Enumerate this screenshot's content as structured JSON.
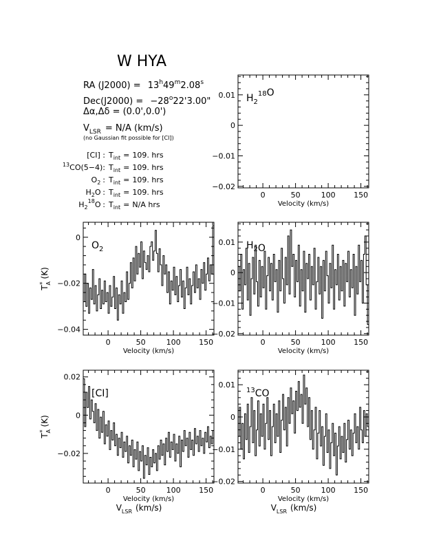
{
  "header": {
    "title": "W HYA",
    "ra_label": "RA (J2000) =",
    "ra_h": "13",
    "ra_h_unit": "h",
    "ra_m": "49",
    "ra_m_unit": "m",
    "ra_s": "2.08",
    "ra_s_unit": "s",
    "dec_label": "Dec(J2000) =",
    "dec_deg": "−28",
    "dec_deg_unit": "o",
    "dec_rest": "22'3.00\"",
    "offset": "Δα,Δδ = (0.0',0.0')",
    "vlsr_main": "V",
    "vlsr_sub": "LSR",
    "vlsr_rest": "= N/A (km/s)",
    "note": "(no Gaussian fit possible for [CI])"
  },
  "integration_table": [
    {
      "pre": "",
      "sup": "",
      "name": "[CI]",
      "sub": "",
      "post": "",
      "value": "109. hrs"
    },
    {
      "pre": "",
      "sup": "13",
      "name": "CO(5−4)",
      "sub": "",
      "post": "",
      "value": "109. hrs"
    },
    {
      "pre": "",
      "sup": "",
      "name": "O",
      "sub": "2",
      "post": "",
      "value": "109. hrs"
    },
    {
      "pre": "",
      "sup": "",
      "name": "H",
      "sub": "2",
      "post": "O",
      "value": "109. hrs"
    },
    {
      "pre": "",
      "sup": "",
      "name": "H",
      "sub": "2",
      "post": "O",
      "sup2": "18",
      "value": "N/A hrs"
    }
  ],
  "tint_label": "T",
  "tint_sub": "int",
  "tint_eq": "=",
  "colon": ":",
  "chart_data": [
    {
      "id": "h218o",
      "type": "line",
      "label": {
        "main": "H",
        "sub": "2",
        "sup": "18",
        "post": "O"
      },
      "xlabel": "Velocity (km/s)",
      "ylabel": "",
      "xlim": [
        -38,
        162
      ],
      "ylim": [
        -0.0205,
        0.0165
      ],
      "xticks": [
        0,
        50,
        100,
        150
      ],
      "xtick_labels": [
        "0",
        "50",
        "100",
        "150"
      ],
      "yticks": [
        0.01,
        0,
        -0.01,
        -0.02
      ],
      "ytick_labels": [
        "0.01",
        "0",
        "−0.01",
        "−0.02"
      ],
      "x": [],
      "y": []
    },
    {
      "id": "o2",
      "type": "line",
      "label": {
        "main": "O",
        "sub": "2"
      },
      "xlabel": "Velocity (km/s)",
      "ylabel": "T*A (K)",
      "xlim": [
        -38,
        162
      ],
      "ylim": [
        -0.0425,
        0.0065
      ],
      "xticks": [
        0,
        50,
        100,
        150
      ],
      "xtick_labels": [
        "0",
        "50",
        "100",
        "150"
      ],
      "yticks": [
        0,
        -0.02,
        -0.04
      ],
      "ytick_labels": [
        "0",
        "−0.02",
        "−0.04"
      ],
      "x": [
        -37,
        -35,
        -33,
        -31,
        -29,
        -27,
        -25,
        -23,
        -21,
        -19,
        -17,
        -15,
        -13,
        -11,
        -9,
        -7,
        -5,
        -3,
        -1,
        1,
        3,
        5,
        7,
        9,
        11,
        13,
        15,
        17,
        19,
        21,
        23,
        25,
        27,
        29,
        31,
        33,
        35,
        37,
        39,
        41,
        43,
        45,
        47,
        49,
        51,
        53,
        55,
        57,
        59,
        61,
        63,
        65,
        67,
        69,
        71,
        73,
        75,
        77,
        79,
        81,
        83,
        85,
        87,
        89,
        91,
        93,
        95,
        97,
        99,
        101,
        103,
        105,
        107,
        109,
        111,
        113,
        115,
        117,
        119,
        121,
        123,
        125,
        127,
        129,
        131,
        133,
        135,
        137,
        139,
        141,
        143,
        145,
        147,
        149,
        151,
        153,
        155,
        157,
        159,
        161
      ],
      "y": [
        -0.028,
        -0.016,
        -0.03,
        -0.02,
        -0.033,
        -0.022,
        -0.027,
        -0.014,
        -0.029,
        -0.021,
        -0.032,
        -0.025,
        -0.018,
        -0.031,
        -0.023,
        -0.029,
        -0.019,
        -0.028,
        -0.024,
        -0.033,
        -0.021,
        -0.03,
        -0.026,
        -0.017,
        -0.031,
        -0.022,
        -0.036,
        -0.025,
        -0.029,
        -0.019,
        -0.033,
        -0.024,
        -0.028,
        -0.015,
        -0.027,
        -0.02,
        -0.011,
        -0.022,
        -0.009,
        -0.019,
        -0.004,
        -0.016,
        -0.007,
        -0.013,
        -0.002,
        -0.018,
        -0.006,
        -0.011,
        -0.014,
        -0.008,
        -0.015,
        -0.004,
        -0.002,
        -0.01,
        -0.006,
        0.003,
        -0.007,
        -0.015,
        -0.005,
        -0.012,
        -0.021,
        -0.008,
        -0.016,
        -0.012,
        -0.024,
        -0.015,
        -0.029,
        -0.019,
        -0.023,
        -0.013,
        -0.025,
        -0.017,
        -0.028,
        -0.021,
        -0.014,
        -0.026,
        -0.019,
        -0.031,
        -0.022,
        -0.013,
        -0.025,
        -0.018,
        -0.029,
        -0.021,
        -0.015,
        -0.024,
        -0.012,
        -0.022,
        -0.018,
        -0.027,
        -0.014,
        -0.02,
        -0.011,
        -0.023,
        -0.016,
        -0.009,
        -0.019,
        -0.012,
        -0.016,
        0.005
      ]
    },
    {
      "id": "h2o",
      "type": "line",
      "label": {
        "main": "H",
        "sub": "2",
        "post": "O"
      },
      "xlabel": "Velocity (km/s)",
      "ylabel": "",
      "xlim": [
        -38,
        162
      ],
      "ylim": [
        -0.0205,
        0.0165
      ],
      "xticks": [
        0,
        50,
        100,
        150
      ],
      "xtick_labels": [
        "0",
        "50",
        "100",
        "150"
      ],
      "yticks": [
        0.01,
        0,
        -0.01,
        -0.02
      ],
      "ytick_labels": [
        "0.01",
        "0",
        "−0.01",
        "−0.02"
      ],
      "x": [
        -37,
        -35,
        -33,
        -31,
        -29,
        -27,
        -25,
        -23,
        -21,
        -19,
        -17,
        -15,
        -13,
        -11,
        -9,
        -7,
        -5,
        -3,
        -1,
        1,
        3,
        5,
        7,
        9,
        11,
        13,
        15,
        17,
        19,
        21,
        23,
        25,
        27,
        29,
        31,
        33,
        35,
        37,
        39,
        41,
        43,
        45,
        47,
        49,
        51,
        53,
        55,
        57,
        59,
        61,
        63,
        65,
        67,
        69,
        71,
        73,
        75,
        77,
        79,
        81,
        83,
        85,
        87,
        89,
        91,
        93,
        95,
        97,
        99,
        101,
        103,
        105,
        107,
        109,
        111,
        113,
        115,
        117,
        119,
        121,
        123,
        125,
        127,
        129,
        131,
        133,
        135,
        137,
        139,
        141,
        143,
        145,
        147,
        149,
        151,
        153,
        155,
        157,
        159,
        161
      ],
      "y": [
        0.002,
        -0.006,
        0.006,
        -0.012,
        0.001,
        -0.004,
        0.008,
        -0.009,
        0.003,
        -0.014,
        -0.002,
        0.005,
        -0.007,
        0.009,
        -0.003,
        -0.011,
        0.004,
        -0.008,
        0.002,
        -0.005,
        0.007,
        -0.012,
        -0.001,
        0.005,
        -0.006,
        0.003,
        -0.009,
        0.006,
        -0.003,
        0.001,
        -0.013,
        0.004,
        -0.006,
        0.008,
        -0.002,
        -0.01,
        0.005,
        -0.004,
        0.012,
        -0.007,
        0.014,
        0.002,
        0.006,
        -0.008,
        0.004,
        -0.003,
        0.009,
        -0.011,
        0.001,
        -0.006,
        0.007,
        -0.013,
        0.003,
        -0.002,
        0.006,
        -0.009,
        0.002,
        -0.004,
        0.008,
        -0.012,
        -0.003,
        0.005,
        -0.007,
        0.002,
        -0.015,
        0.004,
        -0.006,
        0.007,
        -0.001,
        -0.01,
        0.003,
        -0.005,
        0.009,
        -0.012,
        0.001,
        -0.004,
        0.006,
        -0.009,
        0.002,
        -0.006,
        0.004,
        -0.011,
        0.003,
        -0.003,
        0.007,
        -0.008,
        0.001,
        -0.005,
        0.006,
        -0.014,
        0.002,
        -0.007,
        0.009,
        -0.003,
        0.004,
        -0.01,
        0.006,
        0.012,
        -0.004,
        -0.017
      ]
    },
    {
      "id": "ci",
      "type": "line",
      "label": {
        "main": "[CI]"
      },
      "xlabel": "Velocity (km/s)",
      "xlabel2": "V",
      "xlabel2_sub": "LSR",
      "xlabel2_rest": "(km/s)",
      "ylabel": "T*A (K)",
      "xlim": [
        -38,
        162
      ],
      "ylim": [
        -0.0355,
        0.0235
      ],
      "xticks": [
        0,
        50,
        100,
        150
      ],
      "xtick_labels": [
        "0",
        "50",
        "100",
        "150"
      ],
      "yticks": [
        0.02,
        0,
        -0.02
      ],
      "ytick_labels": [
        "0.02",
        "0",
        "−0.02"
      ],
      "x": [
        -37,
        -35,
        -33,
        -31,
        -29,
        -27,
        -25,
        -23,
        -21,
        -19,
        -17,
        -15,
        -13,
        -11,
        -9,
        -7,
        -5,
        -3,
        -1,
        1,
        3,
        5,
        7,
        9,
        11,
        13,
        15,
        17,
        19,
        21,
        23,
        25,
        27,
        29,
        31,
        33,
        35,
        37,
        39,
        41,
        43,
        45,
        47,
        49,
        51,
        53,
        55,
        57,
        59,
        61,
        63,
        65,
        67,
        69,
        71,
        73,
        75,
        77,
        79,
        81,
        83,
        85,
        87,
        89,
        91,
        93,
        95,
        97,
        99,
        101,
        103,
        105,
        107,
        109,
        111,
        113,
        115,
        117,
        119,
        121,
        123,
        125,
        127,
        129,
        131,
        133,
        135,
        137,
        139,
        141,
        143,
        145,
        147,
        149,
        151,
        153,
        155,
        157,
        159,
        161
      ],
      "y": [
        0.019,
        -0.006,
        0.012,
        0.004,
        0.015,
        -0.002,
        0.008,
        0.002,
        -0.004,
        0.006,
        -0.008,
        0.003,
        -0.012,
        -0.001,
        -0.009,
        0.002,
        -0.015,
        -0.005,
        -0.011,
        -0.003,
        -0.018,
        -0.008,
        -0.013,
        -0.004,
        -0.016,
        -0.01,
        -0.021,
        -0.012,
        -0.017,
        -0.009,
        -0.022,
        -0.014,
        -0.019,
        -0.011,
        -0.025,
        -0.016,
        -0.021,
        -0.013,
        -0.027,
        -0.018,
        -0.023,
        -0.014,
        -0.029,
        -0.019,
        -0.024,
        -0.016,
        -0.033,
        -0.021,
        -0.026,
        -0.017,
        -0.031,
        -0.022,
        -0.027,
        -0.018,
        -0.025,
        -0.02,
        -0.029,
        -0.016,
        -0.023,
        -0.013,
        -0.021,
        -0.015,
        -0.026,
        -0.012,
        -0.019,
        -0.009,
        -0.022,
        -0.014,
        -0.018,
        -0.01,
        -0.024,
        -0.015,
        -0.02,
        -0.011,
        -0.027,
        -0.013,
        -0.019,
        -0.008,
        -0.016,
        -0.012,
        -0.022,
        -0.009,
        -0.018,
        -0.013,
        -0.021,
        -0.007,
        -0.015,
        -0.011,
        -0.019,
        -0.008,
        -0.016,
        -0.012,
        -0.02,
        -0.009,
        -0.014,
        -0.006,
        -0.017,
        -0.011,
        -0.015,
        -0.008
      ]
    },
    {
      "id": "13co",
      "type": "line",
      "label": {
        "pre_sup": "13",
        "main": "CO"
      },
      "xlabel": "Velocity (km/s)",
      "xlabel2": "V",
      "xlabel2_sub": "LSR",
      "xlabel2_rest": "(km/s)",
      "ylabel": "",
      "xlim": [
        -38,
        162
      ],
      "ylim": [
        -0.0205,
        0.0145
      ],
      "xticks": [
        0,
        50,
        100,
        150
      ],
      "xtick_labels": [
        "0",
        "50",
        "100",
        "150"
      ],
      "yticks": [
        0.01,
        0,
        -0.01,
        -0.02
      ],
      "ytick_labels": [
        "0.01",
        "0",
        "−0.01",
        "−0.02"
      ],
      "x": [
        -37,
        -35,
        -33,
        -31,
        -29,
        -27,
        -25,
        -23,
        -21,
        -19,
        -17,
        -15,
        -13,
        -11,
        -9,
        -7,
        -5,
        -3,
        -1,
        1,
        3,
        5,
        7,
        9,
        11,
        13,
        15,
        17,
        19,
        21,
        23,
        25,
        27,
        29,
        31,
        33,
        35,
        37,
        39,
        41,
        43,
        45,
        47,
        49,
        51,
        53,
        55,
        57,
        59,
        61,
        63,
        65,
        67,
        69,
        71,
        73,
        75,
        77,
        79,
        81,
        83,
        85,
        87,
        89,
        91,
        93,
        95,
        97,
        99,
        101,
        103,
        105,
        107,
        109,
        111,
        113,
        115,
        117,
        119,
        121,
        123,
        125,
        127,
        129,
        131,
        133,
        135,
        137,
        139,
        141,
        143,
        145,
        147,
        149,
        151,
        153,
        155,
        157,
        159,
        161
      ],
      "y": [
        -0.006,
        0.003,
        -0.01,
        -0.002,
        -0.013,
        0.001,
        -0.007,
        0.004,
        -0.011,
        -0.003,
        0.006,
        -0.008,
        0.002,
        -0.012,
        -0.004,
        0.005,
        -0.009,
        0.001,
        -0.006,
        0.004,
        -0.01,
        -0.002,
        0.006,
        -0.007,
        0.002,
        -0.012,
        -0.003,
        0.004,
        -0.008,
        0.001,
        -0.006,
        0.005,
        -0.011,
        -0.001,
        0.007,
        -0.004,
        0.003,
        -0.009,
        0.006,
        -0.002,
        0.009,
        0.001,
        0.005,
        -0.005,
        0.008,
        0.002,
        0.011,
        0.003,
        0.007,
        -0.002,
        0.013,
        0.004,
        0.009,
        -0.003,
        0.006,
        -0.007,
        0.002,
        -0.01,
        -0.004,
        0.003,
        -0.013,
        -0.005,
        0.002,
        -0.009,
        -0.003,
        -0.015,
        -0.006,
        0.001,
        -0.011,
        -0.004,
        -0.016,
        -0.008,
        -0.002,
        -0.012,
        -0.005,
        -0.018,
        -0.009,
        -0.003,
        -0.013,
        -0.006,
        -0.011,
        -0.002,
        -0.014,
        -0.007,
        -0.001,
        -0.01,
        -0.004,
        -0.012,
        -0.005,
        0.001,
        -0.008,
        -0.003,
        -0.01,
        0.003,
        -0.004,
        -0.008,
        0.002,
        -0.006,
        0.001,
        -0.003
      ]
    }
  ]
}
